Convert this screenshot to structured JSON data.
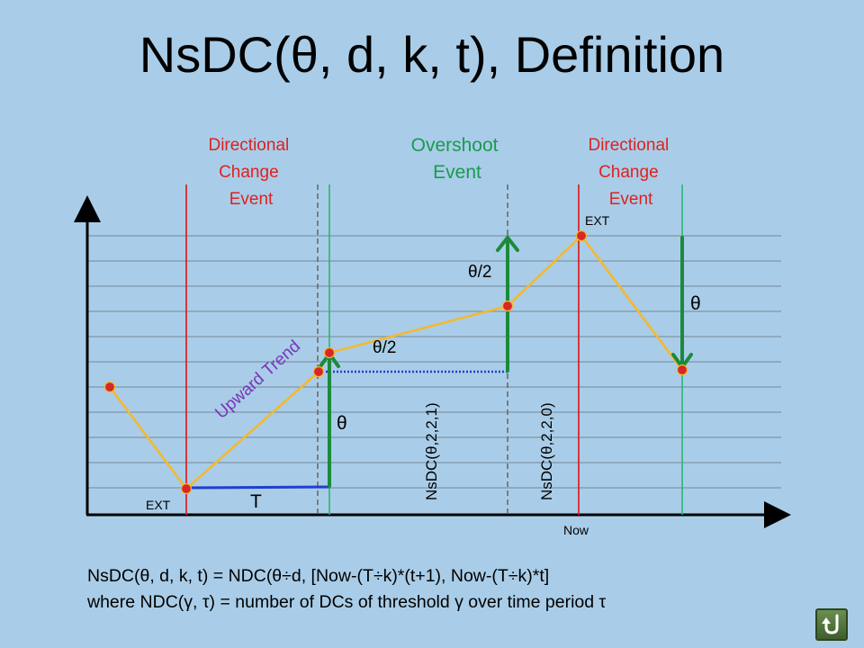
{
  "title": "NsDC(θ, d, k, t), Definition",
  "events": {
    "dc1": [
      "Directional",
      "Change",
      "Event"
    ],
    "overshoot": [
      "Overshoot",
      "Event"
    ],
    "dc2": [
      "Directional",
      "Change",
      "Event"
    ]
  },
  "labels": {
    "ext_bottom": "EXT",
    "ext_top": "EXT",
    "t_label": "T",
    "theta_left": "θ",
    "theta_half_1": "θ/2",
    "theta_half_2": "θ/2",
    "theta_right": "θ",
    "upward_trend": "Upward Trend",
    "nsdc_1": "NsDC(θ,2,2,1)",
    "nsdc_0": "NsDC(θ,2,2,0)",
    "now": "Now"
  },
  "formula": {
    "line1": "NsDC(θ, d, k, t) = NDC(θ÷d, [Now-(T÷k)*(t+1), Now-(T÷k)*t]",
    "line2": "where NDC(γ, τ) = number of DCs of threshold γ over time period τ"
  },
  "colors": {
    "background": "#a9cde8",
    "dc_line": "#d62828",
    "overshoot_line": "#2bb673",
    "price_line": "#f5b82e",
    "arrow": "#1b8a3a",
    "event_red": "#e02020",
    "event_green": "#1a9a50",
    "trend_text": "#7a35b8",
    "time_bar": "#1f3fd0"
  },
  "icons": {
    "nav": "return-icon"
  }
}
